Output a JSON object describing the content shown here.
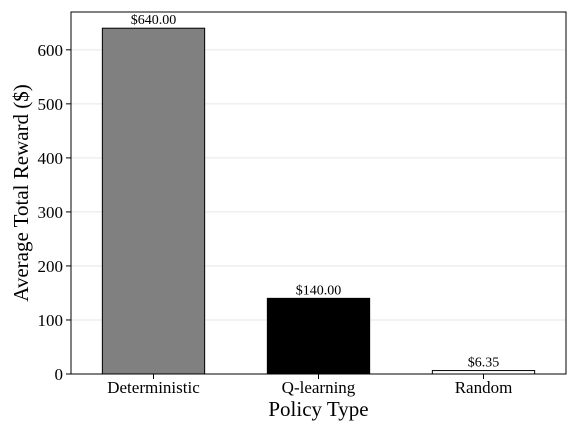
{
  "chart_data": {
    "type": "bar",
    "title": "",
    "xlabel": "Policy Type",
    "ylabel": "Average Total Reward ($)",
    "categories": [
      "Deterministic",
      "Q-learning",
      "Random"
    ],
    "values": [
      640.0,
      140.0,
      6.35
    ],
    "data_labels": [
      "$640.00",
      "$140.00",
      "$6.35"
    ],
    "colors": [
      "#808080",
      "#000000",
      "#ffffff"
    ],
    "edge_color": "#000000",
    "ylim": [
      0,
      670
    ],
    "yticks": [
      0,
      100,
      200,
      300,
      400,
      500,
      600
    ],
    "grid": "horizontal, light"
  }
}
